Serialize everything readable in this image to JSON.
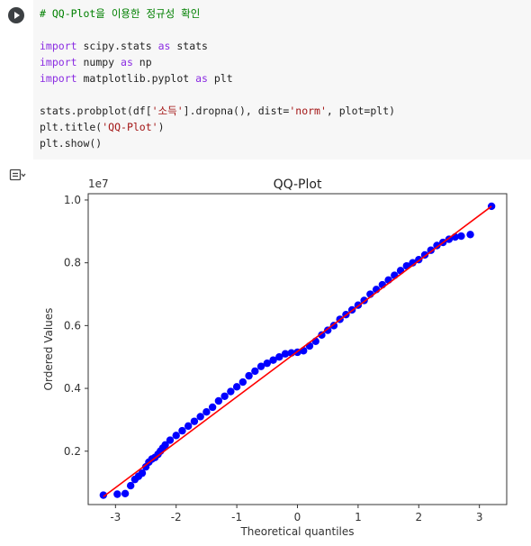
{
  "code": {
    "comment": "# QQ-Plot을 이용한 정규성 확인",
    "import1": {
      "kw1": "import",
      "mod": " scipy.stats ",
      "kw2": "as",
      "alias": " stats"
    },
    "import2": {
      "kw1": "import",
      "mod": " numpy ",
      "kw2": "as",
      "alias": " np"
    },
    "import3": {
      "kw1": "import",
      "mod": " matplotlib.pyplot ",
      "kw2": "as",
      "alias": " plt"
    },
    "probplot": {
      "a": "stats.probplot(df[",
      "s1": "'소득'",
      "b": "].dropna(), dist=",
      "s2": "'norm'",
      "c": ", plot=plt)"
    },
    "title_call": {
      "a": "plt.title(",
      "s": "'QQ-Plot'",
      "b": ")"
    },
    "show_call": "plt.show()"
  },
  "icons": {
    "run": "play-icon",
    "output": "output-toggle-icon"
  },
  "colors": {
    "points": "#0000ff",
    "fit_line": "#ff0000",
    "comment": "#008000",
    "keyword": "#8a2be2",
    "string": "#a31515"
  },
  "chart_data": {
    "type": "scatter",
    "title": "QQ-Plot",
    "xlabel": "Theoretical quantiles",
    "ylabel": "Ordered Values",
    "y_offset_label": "1e7",
    "xlim": [
      -3.45,
      3.45
    ],
    "ylim": [
      0.03,
      1.02
    ],
    "x_ticks": [
      -3,
      -2,
      -1,
      0,
      1,
      2,
      3
    ],
    "x_tick_labels": [
      "-3",
      "-2",
      "-1",
      "0",
      "1",
      "2",
      "3"
    ],
    "y_ticks": [
      0.2,
      0.4,
      0.6,
      0.8,
      1.0
    ],
    "y_tick_labels": [
      "0.2",
      "0.4",
      "0.6",
      "0.8",
      "1.0"
    ],
    "grid": false,
    "fit_line": {
      "x": [
        -3.2,
        3.2
      ],
      "y": [
        0.055,
        0.98
      ]
    },
    "points": {
      "x": [
        -3.2,
        -2.97,
        -2.84,
        -2.75,
        -2.68,
        -2.62,
        -2.56,
        -2.5,
        -2.45,
        -2.4,
        -2.35,
        -2.3,
        -2.26,
        -2.22,
        -2.18,
        -2.1,
        -2.0,
        -1.9,
        -1.8,
        -1.7,
        -1.6,
        -1.5,
        -1.4,
        -1.3,
        -1.2,
        -1.1,
        -1.0,
        -0.9,
        -0.8,
        -0.7,
        -0.6,
        -0.5,
        -0.4,
        -0.3,
        -0.2,
        -0.1,
        0.0,
        0.1,
        0.2,
        0.3,
        0.4,
        0.5,
        0.6,
        0.7,
        0.8,
        0.9,
        1.0,
        1.1,
        1.2,
        1.3,
        1.4,
        1.5,
        1.6,
        1.7,
        1.8,
        1.9,
        2.0,
        2.1,
        2.2,
        2.3,
        2.4,
        2.5,
        2.6,
        2.7,
        2.85,
        3.2
      ],
      "y": [
        0.06,
        0.063,
        0.065,
        0.09,
        0.11,
        0.12,
        0.13,
        0.15,
        0.165,
        0.175,
        0.18,
        0.19,
        0.2,
        0.21,
        0.22,
        0.235,
        0.25,
        0.265,
        0.28,
        0.295,
        0.31,
        0.325,
        0.34,
        0.36,
        0.375,
        0.39,
        0.405,
        0.42,
        0.44,
        0.455,
        0.47,
        0.48,
        0.49,
        0.5,
        0.51,
        0.513,
        0.515,
        0.52,
        0.535,
        0.55,
        0.57,
        0.585,
        0.6,
        0.62,
        0.635,
        0.65,
        0.665,
        0.68,
        0.7,
        0.715,
        0.73,
        0.745,
        0.76,
        0.775,
        0.79,
        0.8,
        0.81,
        0.825,
        0.84,
        0.855,
        0.865,
        0.875,
        0.882,
        0.885,
        0.89,
        0.98
      ]
    }
  }
}
